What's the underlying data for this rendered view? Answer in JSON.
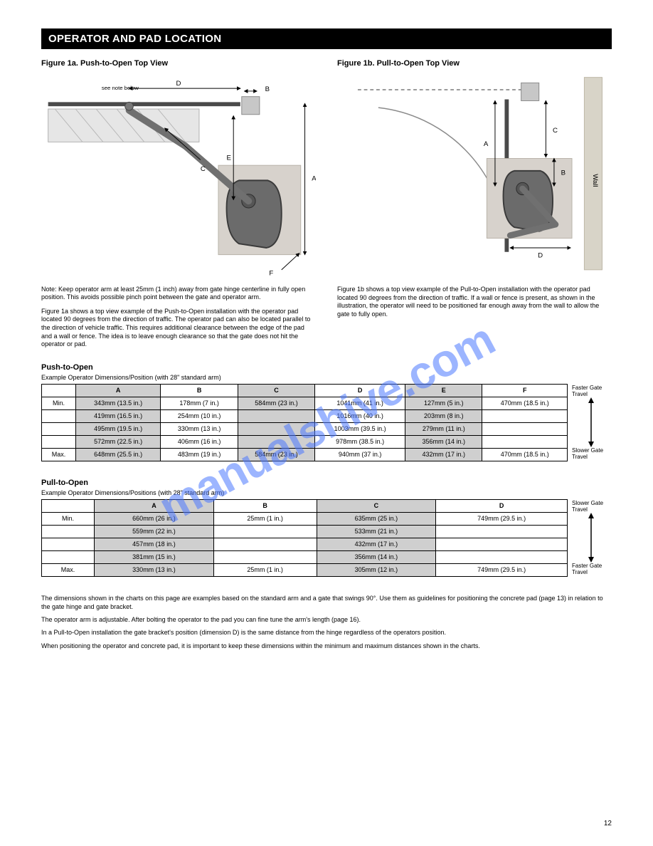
{
  "watermark": "manualshive.com",
  "title_bar": "OPERATOR AND PAD LOCATION",
  "page_number": "12",
  "fig1": {
    "caption": "Figure 1a. Push-to-Open Top View",
    "labels": {
      "A": "A",
      "B": "B",
      "C": "C",
      "D": "D",
      "E": "E",
      "F": "F",
      "see_note": "see\nnote\nbelow"
    },
    "note": "Note: Keep operator arm at least 25mm (1 inch) away from gate hinge centerline in fully open position. This avoids possible pinch point between the gate and operator arm.",
    "desc": "Figure 1a shows a top view example of the Push-to-Open installation with the operator pad located 90 degrees from the direction of traffic. The operator pad can also be located parallel to the direction of vehicle traffic. This requires additional clearance between the edge of the pad and a wall or fence. The idea is to leave enough clearance so that the gate does not hit the operator or pad."
  },
  "fig2": {
    "caption": "Figure 1b. Pull-to-Open Top View",
    "labels": {
      "A": "A",
      "B": "B",
      "C": "C",
      "D": "D",
      "wall": "Wall"
    },
    "note": "Figure 1b shows a top view example of the Pull-to-Open installation with the operator pad located 90 degrees from the direction of traffic. If a wall or fence is present, as shown in the illustration, the operator will need to be positioned far enough away from the wall to allow the gate to fully open."
  },
  "table_push": {
    "title": "Push-to-Open",
    "subtitle": "Example Operator Dimensions/Position (with 28\" standard arm)",
    "headers": [
      "",
      "A",
      "B",
      "C",
      "D",
      "E",
      "F"
    ],
    "rows": [
      [
        "Min.",
        "343mm (13.5 in.)",
        "178mm (7 in.)",
        "584mm (23 in.)",
        "1041mm (41 in.)",
        "127mm (5 in.)",
        "470mm (18.5 in.)"
      ],
      [
        "",
        "419mm (16.5 in.)",
        "254mm (10 in.)",
        "",
        "1016mm (40 in.)",
        "203mm (8 in.)",
        ""
      ],
      [
        "",
        "495mm (19.5 in.)",
        "330mm (13 in.)",
        "",
        "1003mm (39.5 in.)",
        "279mm (11 in.)",
        ""
      ],
      [
        "",
        "572mm (22.5 in.)",
        "406mm (16 in.)",
        "",
        "978mm (38.5 in.)",
        "356mm (14 in.)",
        ""
      ],
      [
        "Max.",
        "648mm (25.5 in.)",
        "483mm (19 in.)",
        "584mm (23 in.)",
        "940mm (37 in.)",
        "432mm (17 in.)",
        "470mm (18.5 in.)"
      ]
    ],
    "arrow_top": "Faster Gate Travel",
    "arrow_bot": "Slower Gate Travel"
  },
  "table_pull": {
    "title": "Pull-to-Open",
    "subtitle": "Example Operator Dimensions/Positions (with 28\" standard arm)",
    "headers": [
      "",
      "A",
      "B",
      "C",
      "D"
    ],
    "rows": [
      [
        "Min.",
        "660mm (26 in.)",
        "25mm (1 in.)",
        "635mm (25 in.)",
        "749mm (29.5 in.)"
      ],
      [
        "",
        "559mm (22 in.)",
        "",
        "533mm (21 in.)",
        ""
      ],
      [
        "",
        "457mm (18 in.)",
        "",
        "432mm (17 in.)",
        ""
      ],
      [
        "",
        "381mm (15 in.)",
        "",
        "356mm (14 in.)",
        ""
      ],
      [
        "Max.",
        "330mm (13 in.)",
        "25mm (1 in.)",
        "305mm (12 in.)",
        "749mm (29.5 in.)"
      ]
    ],
    "arrow_top": "Slower Gate Travel",
    "arrow_bot": "Faster Gate Travel"
  },
  "tail": {
    "l1": "The dimensions shown in the charts on this page are examples based on the standard arm and a gate that swings 90°. Use them as guidelines for positioning the concrete pad (page 13) in relation to the gate hinge and gate bracket.",
    "l2": "The operator arm is adjustable. After bolting the operator to the pad you can fine tune the arm's length (page 16).",
    "l3": "In a Pull-to-Open installation the gate bracket's position (dimension D) is the same distance from the hinge regardless of the operators position.",
    "l4": "When positioning the operator and concrete pad, it is important to keep these dimensions within the minimum and maximum distances shown in the charts."
  },
  "colors": {
    "bar_bg": "#000000",
    "bar_fg": "#ffffff",
    "shade": "#cfcfcf",
    "watermark": "#4d79ff",
    "pad_fill": "#d7d2cc",
    "operator_fill": "#6b6b6b",
    "operator_stroke": "#3a3a3a",
    "gate_stroke": "#4a4a4a",
    "fence_fill": "#c9c9c9",
    "arrow": "#000000",
    "wall_fill": "#d8d4c8"
  }
}
